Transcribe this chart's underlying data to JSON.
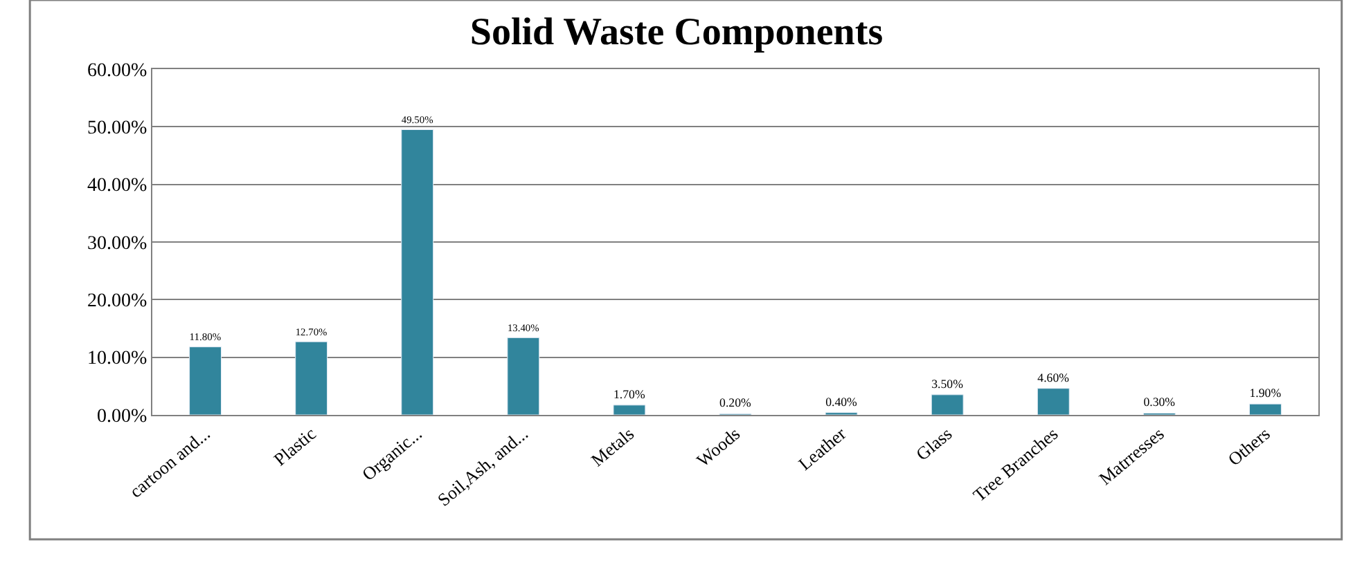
{
  "chart_data": {
    "type": "bar",
    "title": "Solid Waste Components",
    "categories": [
      "cartoon and...",
      "Plastic",
      "Organic...",
      "Soil,Ash, and...",
      "Metals",
      "Woods",
      "Leather",
      "Glass",
      "Tree Branches",
      "Matrresses",
      "Others"
    ],
    "values": [
      11.8,
      12.7,
      49.5,
      13.4,
      1.7,
      0.2,
      0.4,
      3.5,
      4.6,
      0.3,
      1.9
    ],
    "value_labels": [
      "11.80%",
      "12.70%",
      "49.50%",
      "13.40%",
      "1.70%",
      "0.20%",
      "0.40%",
      "3.50%",
      "4.60%",
      "0.30%",
      "1.90%"
    ],
    "color": "#31859c",
    "ylim": [
      0,
      60
    ],
    "yticks": [
      {
        "value": 0,
        "label": "0.00%"
      },
      {
        "value": 10,
        "label": "10.00%"
      },
      {
        "value": 20,
        "label": "20.00%"
      },
      {
        "value": 30,
        "label": "30.00%"
      },
      {
        "value": 40,
        "label": "40.00%"
      },
      {
        "value": 50,
        "label": "50.00%"
      },
      {
        "value": 60,
        "label": "60.00%"
      }
    ],
    "grid": "y",
    "legend": false
  }
}
